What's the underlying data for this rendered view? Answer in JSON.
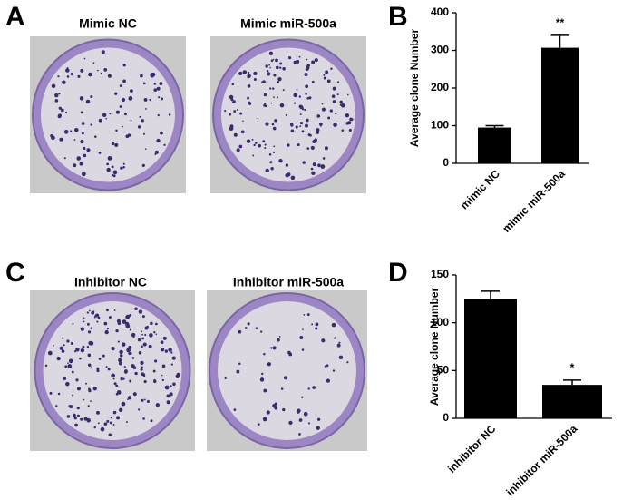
{
  "panels": {
    "labels": [
      "A",
      "B",
      "C",
      "D"
    ],
    "captions": [
      "Mimic NC",
      "Mimic miR-500a",
      "Inhibitor NC",
      "Inhibitor miR-500a"
    ]
  },
  "chart_data": [
    {
      "type": "bar",
      "ylabel": "Average clone Number",
      "categories": [
        "mimic NC",
        "mimic miR-500a"
      ],
      "values": [
        95,
        307
      ],
      "errors": [
        5,
        33
      ],
      "significance": [
        null,
        "**"
      ],
      "color": "#000000",
      "ylim": [
        0,
        400
      ],
      "yticks": [
        0,
        100,
        200,
        300,
        400
      ]
    },
    {
      "type": "bar",
      "ylabel": "Average clone Number",
      "categories": [
        "inhibitor NC",
        "inhibitor miR-500a"
      ],
      "values": [
        125,
        35
      ],
      "errors": [
        8,
        5
      ],
      "significance": [
        null,
        "*"
      ],
      "color": "#000000",
      "ylim": [
        0,
        150
      ],
      "yticks": [
        0,
        50,
        100,
        150
      ]
    }
  ]
}
